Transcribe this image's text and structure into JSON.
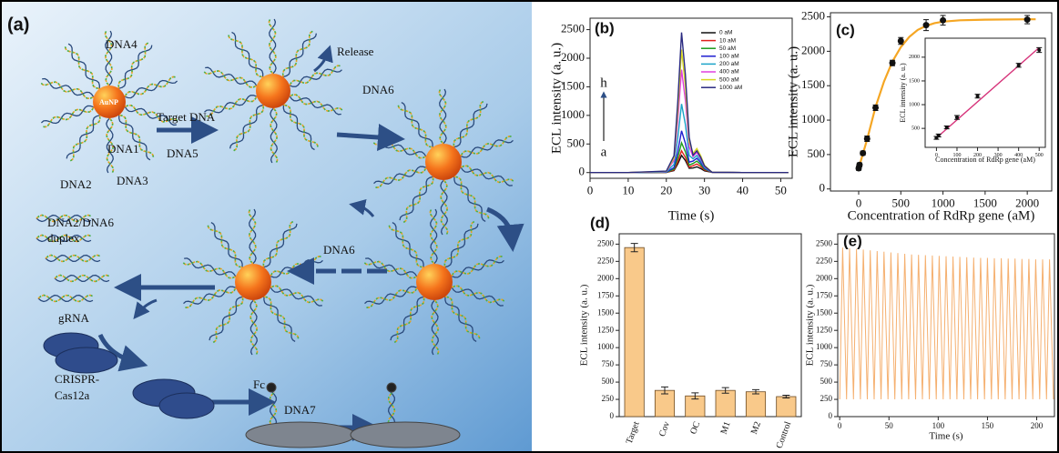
{
  "diagram": {
    "label": "(a)",
    "labels": [
      "DNA4",
      "Release",
      "AuNP",
      "Target DNA",
      "DNA5",
      "DNA1",
      "DNA2",
      "DNA3",
      "DNA6",
      "DNA2/DNA6",
      "duplex",
      "DNA6",
      "gRNA",
      "CRISPR-",
      "Cas12a",
      "Fc",
      "DNA7"
    ]
  },
  "chart_data": [
    {
      "type": "line",
      "label": "(b)",
      "x_label": "Time (s)",
      "y_label": "ECL intensity (a. u.)",
      "x": [
        0,
        10,
        20,
        22,
        23,
        24,
        25,
        26,
        27,
        28,
        29,
        30,
        32,
        40,
        52
      ],
      "series": [
        {
          "name": "0 aM",
          "color": "#111111",
          "values": [
            0,
            0,
            3,
            36,
            150,
            300,
            210,
            75,
            80,
            100,
            70,
            30,
            5,
            0,
            0
          ]
        },
        {
          "name": "10 aM",
          "color": "#e0201b",
          "values": [
            0,
            0,
            4,
            46,
            190,
            380,
            266,
            95,
            120,
            150,
            105,
            45,
            5,
            0,
            0
          ]
        },
        {
          "name": "50 aM",
          "color": "#1a9a1a",
          "values": [
            0,
            0,
            5,
            62,
            260,
            520,
            364,
            130,
            160,
            200,
            140,
            60,
            5,
            0,
            0
          ]
        },
        {
          "name": "100 aM",
          "color": "#1f1fd0",
          "values": [
            0,
            0,
            7,
            88,
            365,
            730,
            511,
            183,
            200,
            250,
            175,
            75,
            5,
            0,
            0
          ]
        },
        {
          "name": "200 aM",
          "color": "#1aa3c8",
          "values": [
            0,
            0,
            12,
            144,
            600,
            1200,
            840,
            300,
            240,
            300,
            210,
            90,
            5,
            0,
            0
          ]
        },
        {
          "name": "400 aM",
          "color": "#e040e0",
          "values": [
            0,
            0,
            18,
            216,
            900,
            1800,
            1260,
            450,
            280,
            350,
            245,
            105,
            5,
            0,
            0
          ]
        },
        {
          "name": "500 aM",
          "color": "#d8d820",
          "values": [
            0,
            0,
            22,
            258,
            1075,
            2150,
            1505,
            538,
            336,
            420,
            294,
            126,
            5,
            0,
            0
          ]
        },
        {
          "name": "1000 aM",
          "color": "#2a2a80",
          "values": [
            0,
            0,
            25,
            294,
            1225,
            2450,
            1715,
            613,
            304,
            380,
            266,
            114,
            5,
            0,
            0
          ]
        }
      ],
      "xlim": [
        0,
        53
      ],
      "xticks": [
        0,
        10,
        20,
        30,
        40,
        50
      ],
      "ylim": [
        -100,
        2700
      ],
      "yticks": [
        0,
        500,
        1000,
        1500,
        2000,
        2500
      ],
      "annotations": [
        "h",
        "a"
      ]
    },
    {
      "type": "scatter",
      "label": "(c)",
      "x_label": "Concentration of RdRp gene (aM)",
      "y_label": "ECL intensity (a. u.)",
      "points": {
        "x": [
          0,
          10,
          50,
          100,
          200,
          400,
          500,
          800,
          1000,
          2000
        ],
        "values": [
          300,
          350,
          520,
          730,
          1180,
          1830,
          2150,
          2380,
          2450,
          2460
        ],
        "errors": [
          30,
          30,
          30,
          40,
          40,
          40,
          50,
          80,
          70,
          60
        ],
        "color": "#111111"
      },
      "fit": {
        "x": [
          0,
          100,
          200,
          300,
          400,
          500,
          600,
          700,
          800,
          900,
          1000,
          1200,
          1500,
          2000,
          2100
        ],
        "values": [
          300,
          720,
          1190,
          1560,
          1850,
          2060,
          2210,
          2310,
          2370,
          2410,
          2430,
          2450,
          2460,
          2465,
          2465
        ],
        "color": "#f5a623"
      },
      "xlim": [
        -335,
        2290
      ],
      "xticks": [
        0,
        500,
        1000,
        1500,
        2000
      ],
      "ylim": [
        -30,
        2560
      ],
      "yticks": [
        0,
        500,
        1000,
        1500,
        2000,
        2500
      ],
      "inset": {
        "x_label": "Concentration of RdRp gene (aM)",
        "y_label": "ECL intensity (a. u.)",
        "points": {
          "x": [
            0,
            10,
            50,
            100,
            200,
            400,
            500
          ],
          "values": [
            300,
            350,
            520,
            730,
            1180,
            1830,
            2150
          ],
          "errors": [
            30,
            30,
            30,
            40,
            40,
            40,
            50
          ],
          "color": "#111111"
        },
        "fit": {
          "x": [
            0,
            500
          ],
          "values": [
            300,
            2200
          ],
          "color": "#d6337a"
        },
        "xlim": [
          -55,
          530
        ],
        "xticks": [
          0,
          100,
          200,
          300,
          400,
          500
        ],
        "ylim": [
          100,
          2400
        ],
        "yticks": [
          500,
          1000,
          1500,
          2000
        ]
      }
    },
    {
      "type": "bar",
      "label": "(d)",
      "y_label": "ECL intensity (a. u.)",
      "categories": [
        "Target",
        "Cov",
        "OC",
        "M1",
        "M2",
        "Control"
      ],
      "values": [
        2450,
        380,
        300,
        380,
        360,
        290
      ],
      "errors": [
        60,
        50,
        45,
        40,
        30,
        20
      ],
      "color": "#f9c98a",
      "ylim": [
        0,
        2650
      ],
      "yticks": [
        0,
        250,
        500,
        750,
        1000,
        1250,
        1500,
        1750,
        2000,
        2250,
        2500
      ]
    },
    {
      "type": "line",
      "label": "(e)",
      "x_label": "Time (s)",
      "y_label": "ECL intensity (a. u.)",
      "color": "#f5b070",
      "x": [
        0,
        3,
        7,
        10,
        14,
        17,
        21,
        24,
        28,
        31,
        35,
        38,
        42,
        45,
        49,
        52,
        56,
        59,
        63,
        66,
        70,
        73,
        77,
        80,
        84,
        87,
        91,
        94,
        98,
        101,
        105,
        108,
        112,
        115,
        119,
        122,
        126,
        129,
        133,
        136,
        140,
        143,
        147,
        150,
        154,
        157,
        161,
        164,
        168,
        171,
        175,
        178,
        182,
        185,
        189,
        192,
        196,
        199,
        203,
        206,
        210,
        213,
        217
      ],
      "values": [
        250,
        2450,
        250,
        2440,
        250,
        2430,
        250,
        2420,
        250,
        2410,
        250,
        2400,
        250,
        2390,
        250,
        2380,
        250,
        2370,
        250,
        2360,
        250,
        2350,
        250,
        2345,
        250,
        2340,
        250,
        2335,
        250,
        2330,
        250,
        2325,
        250,
        2320,
        250,
        2315,
        250,
        2310,
        250,
        2305,
        250,
        2300,
        250,
        2300,
        250,
        2295,
        250,
        2295,
        250,
        2290,
        250,
        2290,
        250,
        2285,
        250,
        2285,
        250,
        2280,
        250,
        2280,
        250,
        2280,
        250
      ],
      "xlim": [
        -2,
        218
      ],
      "xticks": [
        0,
        50,
        100,
        150,
        200
      ],
      "ylim": [
        0,
        2650
      ],
      "yticks": [
        0,
        250,
        500,
        750,
        1000,
        1250,
        1500,
        1750,
        2000,
        2250,
        2500
      ]
    }
  ]
}
